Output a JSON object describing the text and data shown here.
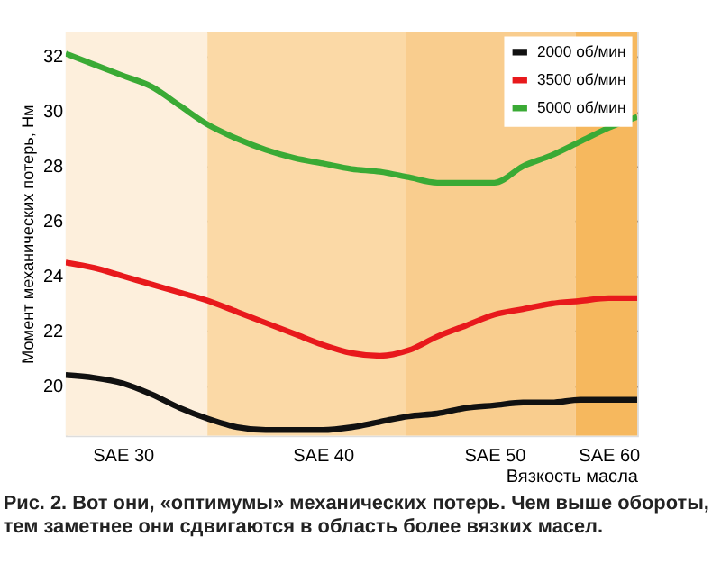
{
  "chart_data": {
    "type": "line",
    "xlabel": "Вязкость масла",
    "ylabel": "Момент механических потерь, Нм",
    "annotations": [
      "Рис. 2. Вот они, «оптимумы» механических потерь. Чем выше обороты,",
      "тем заметнее они сдвигаются в область более вязких масел."
    ],
    "categories": [
      null,
      null,
      "SAE 30",
      null,
      null,
      null,
      null,
      null,
      null,
      "SAE 40",
      null,
      null,
      null,
      null,
      null,
      "SAE 50",
      null,
      null,
      null,
      "SAE 60",
      null
    ],
    "ylim": [
      18.2,
      32.9
    ],
    "yticks": [
      20,
      22,
      24,
      26,
      28,
      30,
      32
    ],
    "grid": "y",
    "legend": "top right",
    "marker": "none",
    "line_style": "solid",
    "series": [
      {
        "name": "2000 об/мин",
        "color": "#111111",
        "values": [
          20.4,
          20.3,
          20.1,
          19.7,
          19.2,
          18.8,
          18.5,
          18.4,
          18.4,
          18.4,
          18.5,
          18.7,
          18.9,
          19.0,
          19.2,
          19.3,
          19.4,
          19.4,
          19.5,
          19.5,
          19.5
        ]
      },
      {
        "name": "3500 об/мин",
        "color": "#e8191c",
        "values": [
          24.5,
          24.3,
          24.0,
          23.7,
          23.4,
          23.1,
          22.7,
          22.3,
          21.9,
          21.5,
          21.2,
          21.1,
          21.3,
          21.8,
          22.2,
          22.6,
          22.8,
          23.0,
          23.1,
          23.2,
          23.2
        ]
      },
      {
        "name": "5000 об/мин",
        "color": "#3aaa35",
        "values": [
          32.1,
          31.7,
          31.3,
          30.9,
          30.2,
          29.5,
          29.0,
          28.6,
          28.3,
          28.1,
          27.9,
          27.8,
          27.6,
          27.4,
          27.4,
          27.4,
          28.0,
          28.4,
          28.9,
          29.4,
          29.8
        ]
      }
    ]
  }
}
